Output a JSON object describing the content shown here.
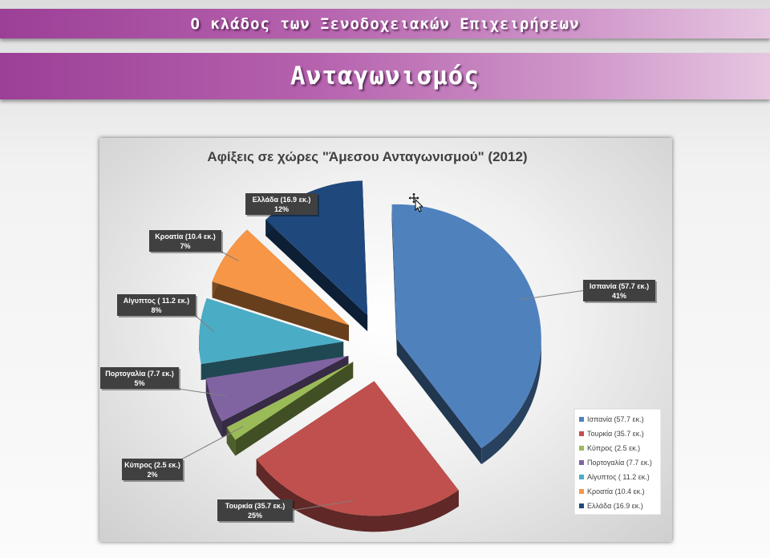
{
  "header": {
    "title": "Ο κλάδος των Ξενοδοχειακών Επιχειρήσεων",
    "section": "Ανταγωνισμός"
  },
  "chart_data": {
    "type": "pie",
    "title": "Αφίξεις σε χώρες \"Άμεσου Ανταγωνισμού\" (2012)",
    "exploded": true,
    "style": "3d",
    "legend_position": "bottom-right",
    "categories": [
      "Ισπανία (57.7 εκ.)",
      "Τουρκία (35.7 εκ.)",
      "Κύπρος (2.5 εκ.)",
      "Πορτογαλία (7.7 εκ.)",
      "Αίγυπτος ( 11.2 εκ.)",
      "Κροατία (10.4 εκ.)",
      "Ελλάδα (16.9 εκ.)"
    ],
    "values": [
      57.7,
      35.7,
      2.5,
      7.7,
      11.2,
      10.4,
      16.9
    ],
    "percent_labels": [
      "41%",
      "25%",
      "2%",
      "5%",
      "8%",
      "7%",
      "12%"
    ],
    "colors": [
      "#4f81bd",
      "#c0504d",
      "#9bbb59",
      "#8064a2",
      "#4bacc6",
      "#f79646",
      "#1f497d"
    ]
  }
}
